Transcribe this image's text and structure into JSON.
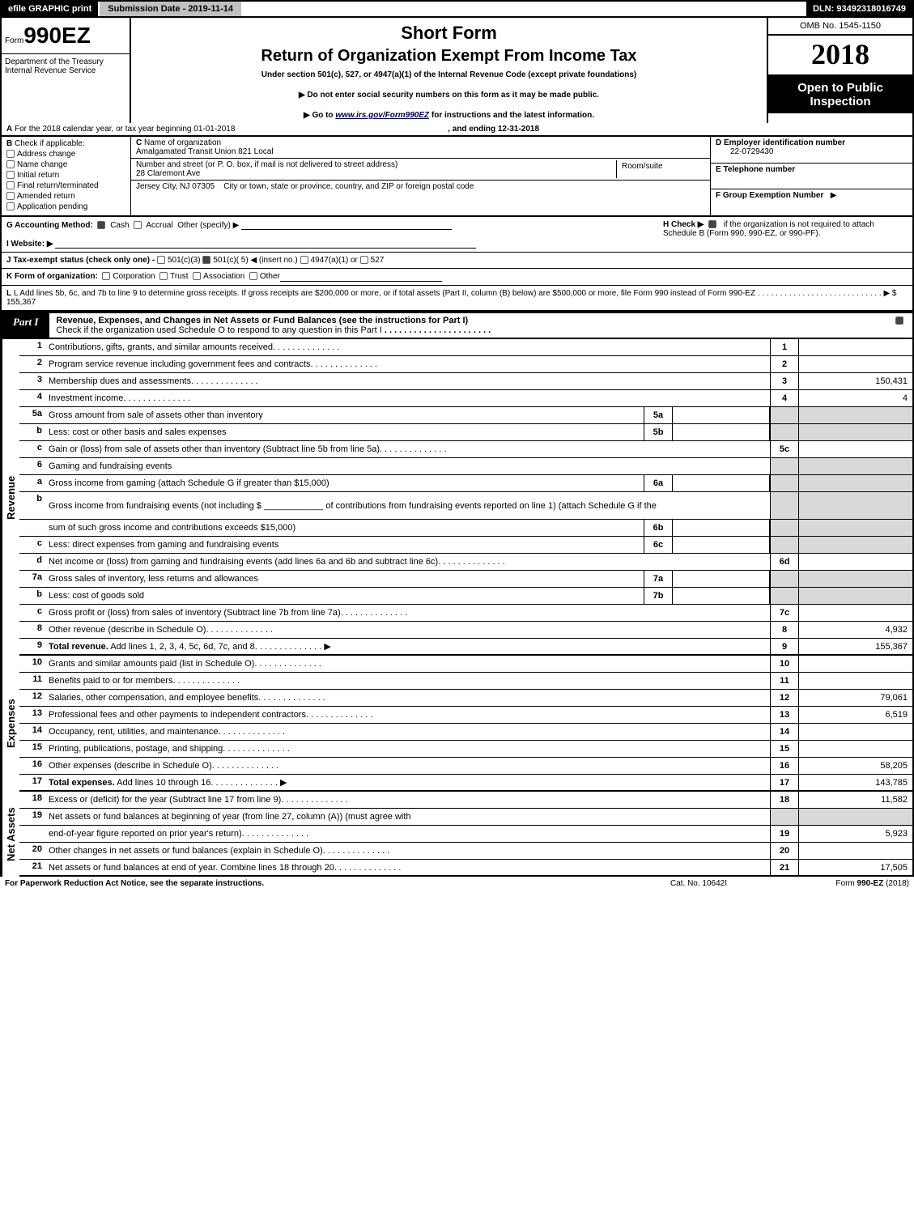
{
  "topbar": {
    "efile": "efile GRAPHIC print",
    "submission": "Submission Date - 2019-11-14",
    "dln": "DLN: 93492318016749"
  },
  "header": {
    "form_prefix": "Form",
    "form_number": "990EZ",
    "dept1": "Department of the Treasury",
    "dept2": "Internal Revenue Service",
    "shortform": "Short Form",
    "title": "Return of Organization Exempt From Income Tax",
    "subtitle": "Under section 501(c), 527, or 4947(a)(1) of the Internal Revenue Code (except private foundations)",
    "arrow1": "▶ Do not enter social security numbers on this form as it may be made public.",
    "arrow2_pre": "▶ Go to ",
    "arrow2_link": "www.irs.gov/Form990EZ",
    "arrow2_post": " for instructions and the latest information.",
    "omb": "OMB No. 1545-1150",
    "year": "2018",
    "open1": "Open to Public",
    "open2": "Inspection"
  },
  "row_a": {
    "label_a": "A",
    "text": "For the 2018 calendar year, or tax year beginning 01-01-2018",
    "ending": ", and ending 12-31-2018"
  },
  "section_b": {
    "b_label": "B",
    "check_if": "Check if applicable:",
    "opts": [
      "Address change",
      "Name change",
      "Initial return",
      "Final return/terminated",
      "Amended return",
      "Application pending"
    ],
    "c_label": "C",
    "c_text": "Name of organization",
    "org_name": "Amalgamated Transit Union 821 Local",
    "street_label": "Number and street (or P. O. box, if mail is not delivered to street address)",
    "street": "28 Claremont Ave",
    "room_label": "Room/suite",
    "city_label": "City or town, state or province, country, and ZIP or foreign postal code",
    "city": "Jersey City, NJ  07305",
    "d_label": "D Employer identification number",
    "ein": "22-0729430",
    "e_label": "E Telephone number",
    "f_label": "F Group Exemption Number",
    "f_arrow": "▶"
  },
  "lines": {
    "g": "G Accounting Method:",
    "g_cash": "Cash",
    "g_accrual": "Accrual",
    "g_other": "Other (specify) ▶",
    "h": "H  Check ▶",
    "h2": "if the organization is not required to attach Schedule B (Form 990, 990-EZ, or 990-PF).",
    "i": "I Website: ▶",
    "j": "J Tax-exempt status (check only one) -",
    "j1": "501(c)(3)",
    "j2": "501(c)( 5) ◀ (insert no.)",
    "j3": "4947(a)(1) or",
    "j4": "527",
    "k": "K Form of organization:",
    "k_opts": [
      "Corporation",
      "Trust",
      "Association",
      "Other"
    ],
    "l": "L Add lines 5b, 6c, and 7b to line 9 to determine gross receipts. If gross receipts are $200,000 or more, or if total assets (Part II, column (B) below) are $500,000 or more, file Form 990 instead of Form 990-EZ",
    "l_amount": "▶ $ 155,367"
  },
  "part1": {
    "tag": "Part I",
    "title": "Revenue, Expenses, and Changes in Net Assets or Fund Balances (see the instructions for Part I)",
    "sub": "Check if the organization used Schedule O to respond to any question in this Part I"
  },
  "revenue_label": "Revenue",
  "expenses_label": "Expenses",
  "netassets_label": "Net Assets",
  "rows": [
    {
      "n": "1",
      "d": "Contributions, gifts, grants, and similar amounts received",
      "nc": "1",
      "v": ""
    },
    {
      "n": "2",
      "d": "Program service revenue including government fees and contracts",
      "nc": "2",
      "v": ""
    },
    {
      "n": "3",
      "d": "Membership dues and assessments",
      "nc": "3",
      "v": "150,431"
    },
    {
      "n": "4",
      "d": "Investment income",
      "nc": "4",
      "v": "4"
    },
    {
      "n": "5a",
      "d": "Gross amount from sale of assets other than inventory",
      "sub": "5a",
      "subv": "",
      "shade": true
    },
    {
      "n": "b",
      "d": "Less: cost or other basis and sales expenses",
      "sub": "5b",
      "subv": "",
      "shade": true
    },
    {
      "n": "c",
      "d": "Gain or (loss) from sale of assets other than inventory (Subtract line 5b from line 5a)",
      "nc": "5c",
      "v": ""
    },
    {
      "n": "6",
      "d": "Gaming and fundraising events",
      "shade": true,
      "noNum": true
    },
    {
      "n": "a",
      "d": "Gross income from gaming (attach Schedule G if greater than $15,000)",
      "sub": "6a",
      "subv": "",
      "shade": true
    },
    {
      "n": "b",
      "d": "Gross income from fundraising events (not including $ ____________ of contributions from fundraising events reported on line 1) (attach Schedule G if the",
      "shade": true,
      "noNum": true,
      "tall": true
    },
    {
      "n": "",
      "d": "sum of such gross income and contributions exceeds $15,000)",
      "sub": "6b",
      "subv": "",
      "shade": true
    },
    {
      "n": "c",
      "d": "Less: direct expenses from gaming and fundraising events",
      "sub": "6c",
      "subv": "",
      "shade": true
    },
    {
      "n": "d",
      "d": "Net income or (loss) from gaming and fundraising events (add lines 6a and 6b and subtract line 6c)",
      "nc": "6d",
      "v": ""
    },
    {
      "n": "7a",
      "d": "Gross sales of inventory, less returns and allowances",
      "sub": "7a",
      "subv": "",
      "shade": true
    },
    {
      "n": "b",
      "d": "Less: cost of goods sold",
      "sub": "7b",
      "subv": "",
      "shade": true
    },
    {
      "n": "c",
      "d": "Gross profit or (loss) from sales of inventory (Subtract line 7b from line 7a)",
      "nc": "7c",
      "v": ""
    },
    {
      "n": "8",
      "d": "Other revenue (describe in Schedule O)",
      "nc": "8",
      "v": "4,932"
    },
    {
      "n": "9",
      "d": "Total revenue. Add lines 1, 2, 3, 4, 5c, 6d, 7c, and 8",
      "nc": "9",
      "v": "155,367",
      "bold": true,
      "arrow": true
    }
  ],
  "exp_rows": [
    {
      "n": "10",
      "d": "Grants and similar amounts paid (list in Schedule O)",
      "nc": "10",
      "v": ""
    },
    {
      "n": "11",
      "d": "Benefits paid to or for members",
      "nc": "11",
      "v": ""
    },
    {
      "n": "12",
      "d": "Salaries, other compensation, and employee benefits",
      "nc": "12",
      "v": "79,061"
    },
    {
      "n": "13",
      "d": "Professional fees and other payments to independent contractors",
      "nc": "13",
      "v": "6,519"
    },
    {
      "n": "14",
      "d": "Occupancy, rent, utilities, and maintenance",
      "nc": "14",
      "v": ""
    },
    {
      "n": "15",
      "d": "Printing, publications, postage, and shipping",
      "nc": "15",
      "v": ""
    },
    {
      "n": "16",
      "d": "Other expenses (describe in Schedule O)",
      "nc": "16",
      "v": "58,205"
    },
    {
      "n": "17",
      "d": "Total expenses. Add lines 10 through 16",
      "nc": "17",
      "v": "143,785",
      "bold": true,
      "arrow": true
    }
  ],
  "na_rows": [
    {
      "n": "18",
      "d": "Excess or (deficit) for the year (Subtract line 17 from line 9)",
      "nc": "18",
      "v": "11,582"
    },
    {
      "n": "19",
      "d": "Net assets or fund balances at beginning of year (from line 27, column (A)) (must agree with",
      "shade": true,
      "noNum": true
    },
    {
      "n": "",
      "d": "end-of-year figure reported on prior year's return)",
      "nc": "19",
      "v": "5,923"
    },
    {
      "n": "20",
      "d": "Other changes in net assets or fund balances (explain in Schedule O)",
      "nc": "20",
      "v": ""
    },
    {
      "n": "21",
      "d": "Net assets or fund balances at end of year. Combine lines 18 through 20",
      "nc": "21",
      "v": "17,505"
    }
  ],
  "footer": {
    "left": "For Paperwork Reduction Act Notice, see the separate instructions.",
    "mid": "Cat. No. 10642I",
    "right": "Form 990-EZ (2018)"
  },
  "colors": {
    "black": "#000000",
    "shade": "#d9d9d9",
    "gray": "#c0c0c0"
  }
}
